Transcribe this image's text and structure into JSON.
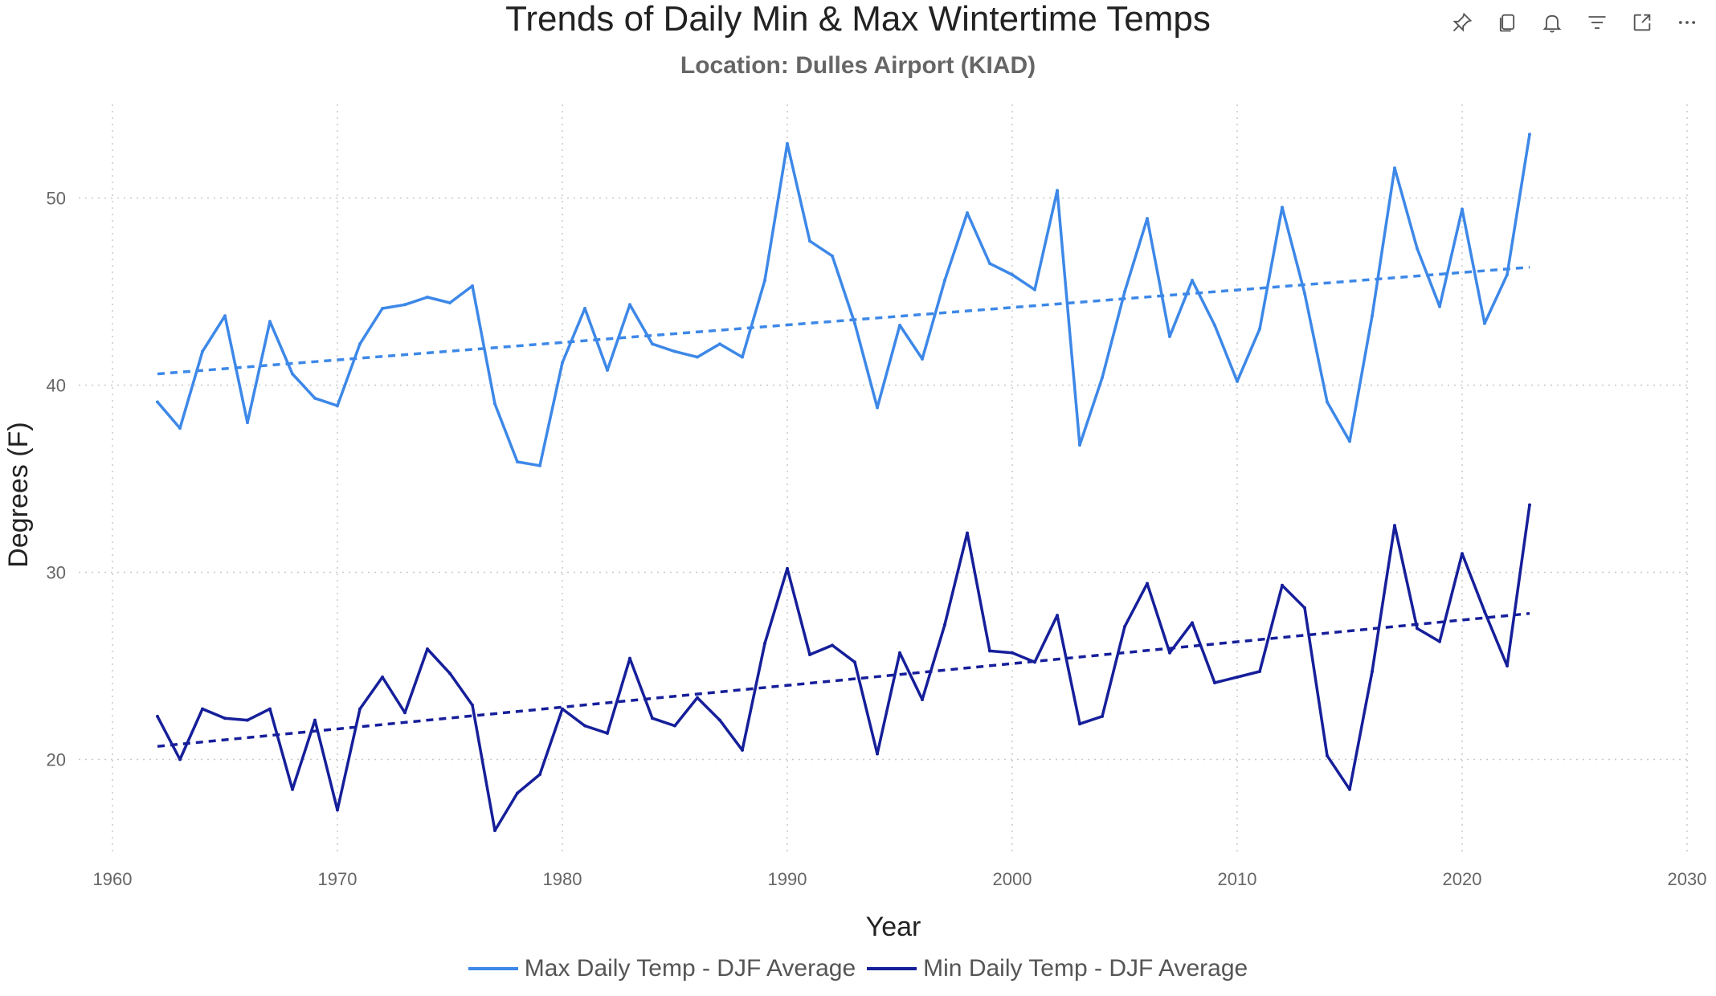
{
  "toolbar": {
    "icons": [
      "pin-icon",
      "copy-icon",
      "bell-icon",
      "filter-icon",
      "focus-mode-icon",
      "more-options-icon"
    ],
    "more_label": "···"
  },
  "colors": {
    "max_series": "#3d88e8",
    "min_series": "#161f9a",
    "grid": "#c8c8c8",
    "axis_text": "#666666"
  },
  "chart_data": {
    "type": "line",
    "title": "Trends of Daily Min & Max Wintertime Temps",
    "subtitle": "Location: Dulles Airport (KIAD)",
    "xlabel": "Year",
    "ylabel": "Degrees (F)",
    "xlim": [
      1958,
      2030
    ],
    "ylim": [
      15,
      55
    ],
    "x_ticks": [
      1960,
      1970,
      1980,
      1990,
      2000,
      2010,
      2020,
      2030
    ],
    "y_ticks": [
      20,
      30,
      40,
      50
    ],
    "grid": true,
    "grid_style": "dotted",
    "legend_position": "bottom-center",
    "x": [
      1962,
      1963,
      1964,
      1965,
      1966,
      1967,
      1968,
      1969,
      1970,
      1971,
      1972,
      1973,
      1974,
      1975,
      1976,
      1977,
      1978,
      1979,
      1980,
      1981,
      1982,
      1983,
      1984,
      1985,
      1986,
      1987,
      1988,
      1989,
      1990,
      1991,
      1992,
      1993,
      1994,
      1995,
      1996,
      1997,
      1998,
      1999,
      2000,
      2001,
      2002,
      2003,
      2004,
      2005,
      2006,
      2007,
      2008,
      2009,
      2010,
      2011,
      2012,
      2013,
      2014,
      2015,
      2016,
      2017,
      2018,
      2019,
      2020,
      2021,
      2022,
      2023
    ],
    "series": [
      {
        "name": "Max Daily Temp - DJF Average",
        "values": [
          39.1,
          37.7,
          41.8,
          43.7,
          38.0,
          43.4,
          40.6,
          39.3,
          38.9,
          42.2,
          44.1,
          44.3,
          44.7,
          44.4,
          45.3,
          39.0,
          35.9,
          35.7,
          41.2,
          44.1,
          40.8,
          44.3,
          42.2,
          41.8,
          41.5,
          42.2,
          41.5,
          45.6,
          52.9,
          47.7,
          46.9,
          43.3,
          38.8,
          43.2,
          41.4,
          45.6,
          49.2,
          46.5,
          45.9,
          45.1,
          50.4,
          36.8,
          40.4,
          45.0,
          48.9,
          42.6,
          45.6,
          43.2,
          40.2,
          43.0,
          49.5,
          44.9,
          39.1,
          37.0,
          43.7,
          51.6,
          47.3,
          44.2,
          49.4,
          43.3,
          45.9,
          53.4
        ]
      },
      {
        "name": "Min Daily Temp - DJF Average",
        "values": [
          22.3,
          20.0,
          22.7,
          22.2,
          22.1,
          22.7,
          18.4,
          22.1,
          17.3,
          22.7,
          24.4,
          22.5,
          25.9,
          24.6,
          22.9,
          16.2,
          18.2,
          19.2,
          22.7,
          21.8,
          21.4,
          25.4,
          22.2,
          21.8,
          23.3,
          22.1,
          20.5,
          26.2,
          30.2,
          25.6,
          26.1,
          25.2,
          20.3,
          25.7,
          23.2,
          27.2,
          32.1,
          25.8,
          25.7,
          25.2,
          27.7,
          21.9,
          22.3,
          27.1,
          29.4,
          25.7,
          27.3,
          24.1,
          24.4,
          24.7,
          29.3,
          28.1,
          20.2,
          18.4,
          24.7,
          32.5,
          27.0,
          26.3,
          31.0,
          27.9,
          25.0,
          33.6
        ]
      }
    ],
    "trendlines": [
      {
        "series": "Max Daily Temp - DJF Average",
        "x": [
          1962,
          2023
        ],
        "y": [
          40.6,
          46.3
        ],
        "style": "dashed"
      },
      {
        "series": "Min Daily Temp - DJF Average",
        "x": [
          1962,
          2023
        ],
        "y": [
          20.7,
          27.8
        ],
        "style": "dashed"
      }
    ]
  }
}
